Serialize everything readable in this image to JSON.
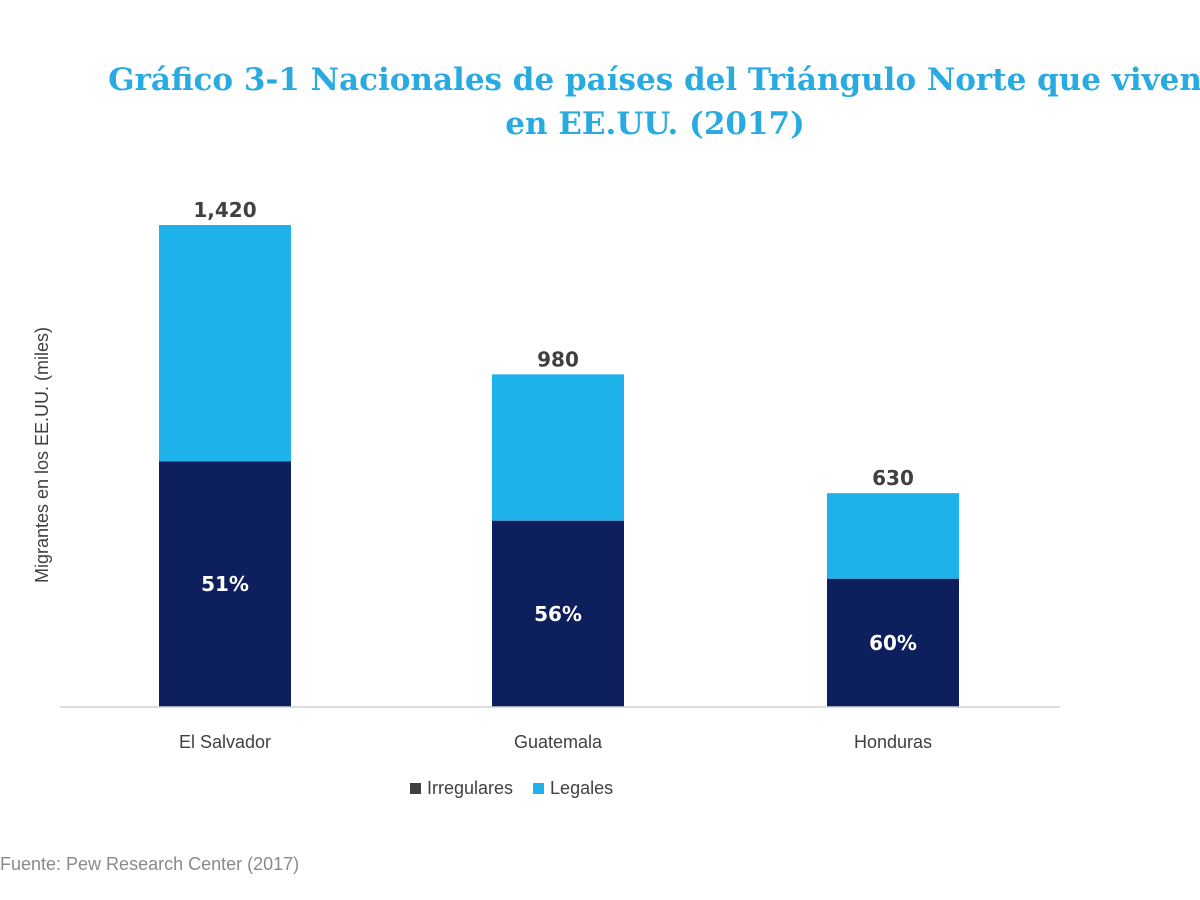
{
  "chart_data": {
    "type": "bar",
    "stacked": true,
    "title": "Gráfico 3-1 Nacionales de países del Triángulo Norte que viven en EE.UU. (2017)",
    "ylabel": "Migrantes en los EE.UU. (miles)",
    "xlabel": "",
    "ylim": [
      0,
      1600
    ],
    "grid": false,
    "legend_position": "bottom",
    "categories": [
      "El Salvador",
      "Guatemala",
      "Honduras"
    ],
    "totals": [
      1420,
      980,
      630
    ],
    "total_labels": [
      "1,420",
      "980",
      "630"
    ],
    "series": [
      {
        "name": "Irregulares",
        "values": [
          724,
          549,
          378
        ],
        "labels": [
          "51%",
          "56%",
          "60%"
        ]
      },
      {
        "name": "Legales",
        "values": [
          696,
          431,
          252
        ]
      }
    ],
    "colors": {
      "Irregulares": "#0d1f5c",
      "Legales": "#1fb2ea",
      "title": "#29abe2",
      "legend_marker_irregulares": "#404040"
    }
  },
  "source": "Fuente: Pew Research Center (2017)"
}
